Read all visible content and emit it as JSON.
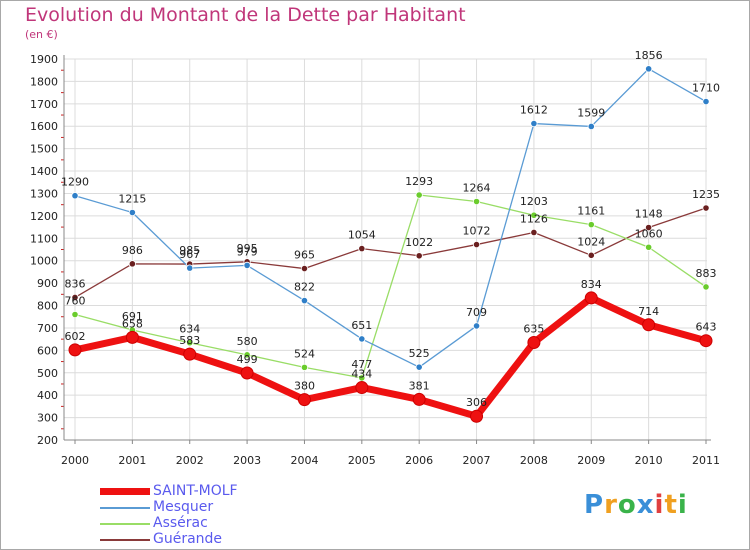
{
  "title": "Evolution du Montant de la Dette par Habitant",
  "unit": "(en €)",
  "logo": {
    "text": "Proxiti",
    "letters": [
      {
        "ch": "P",
        "color": "#3a8fd8"
      },
      {
        "ch": "r",
        "color": "#f0a020"
      },
      {
        "ch": "o",
        "color": "#3ab34a"
      },
      {
        "ch": "x",
        "color": "#3a8fd8"
      },
      {
        "ch": "i",
        "color": "#e04040"
      },
      {
        "ch": "t",
        "color": "#f0a020"
      },
      {
        "ch": "i",
        "color": "#3ab34a"
      }
    ]
  },
  "chart_data": {
    "type": "line",
    "title": "Evolution du Montant de la Dette par Habitant",
    "ylabel": "(en €)",
    "xlabel": "",
    "ylim": [
      200,
      1900
    ],
    "yticks": [
      200,
      300,
      400,
      500,
      600,
      700,
      800,
      900,
      1000,
      1100,
      1200,
      1300,
      1400,
      1500,
      1600,
      1700,
      1800,
      1900
    ],
    "x": [
      "2000",
      "2001",
      "2002",
      "2003",
      "2004",
      "2005",
      "2006",
      "2007",
      "2008",
      "2009",
      "2010",
      "2011"
    ],
    "grid": true,
    "legend_position": "bottom-left",
    "series": [
      {
        "name": "SAINT-MOLF",
        "color": "#ee1111",
        "marker_color": "#ee1111",
        "emphasis": true,
        "values": [
          602,
          658,
          583,
          499,
          380,
          434,
          381,
          306,
          635,
          834,
          714,
          643
        ]
      },
      {
        "name": "Mesquer",
        "color": "#5a9bd4",
        "marker_color": "#2f7fc8",
        "emphasis": false,
        "values": [
          1290,
          1215,
          967,
          979,
          822,
          651,
          525,
          709,
          1612,
          1599,
          1856,
          1710
        ]
      },
      {
        "name": "Assérac",
        "color": "#99dd66",
        "marker_color": "#6acc2c",
        "emphasis": false,
        "values": [
          760,
          691,
          634,
          580,
          524,
          477,
          1293,
          1264,
          1203,
          1161,
          1060,
          883
        ]
      },
      {
        "name": "Guérande",
        "color": "#8a3a3a",
        "marker_color": "#6a1f1f",
        "emphasis": false,
        "values": [
          836,
          986,
          985,
          995,
          965,
          1054,
          1022,
          1072,
          1126,
          1024,
          1148,
          1235
        ]
      }
    ]
  }
}
